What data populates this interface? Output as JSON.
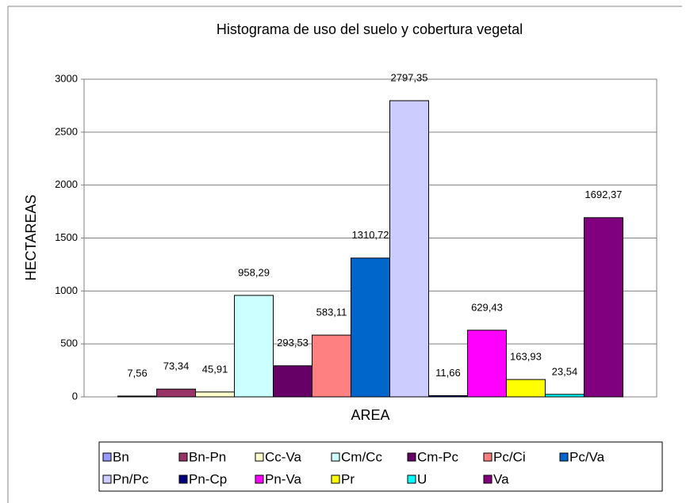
{
  "chart_data": {
    "type": "bar",
    "title": "Histograma de uso del suelo y cobertura vegetal",
    "ylabel": "HECTAREAS",
    "categories": [
      "AREA"
    ],
    "ylim": [
      0,
      3000
    ],
    "yticks": [
      0,
      500,
      1000,
      1500,
      2000,
      2500,
      3000
    ],
    "grid": true,
    "legend": "bottom",
    "series": [
      {
        "name": "Bn",
        "color": "#9999FF",
        "values": [
          7.56
        ],
        "value_labels": [
          "7,56"
        ]
      },
      {
        "name": "Bn-Pn",
        "color": "#993366",
        "values": [
          73.34
        ],
        "value_labels": [
          "73,34"
        ]
      },
      {
        "name": "Cc-Va",
        "color": "#FFFFCC",
        "values": [
          45.91
        ],
        "value_labels": [
          "45,91"
        ]
      },
      {
        "name": "Cm/Cc",
        "color": "#CCFFFF",
        "values": [
          958.29
        ],
        "value_labels": [
          "958,29"
        ]
      },
      {
        "name": "Cm-Pc",
        "color": "#660066",
        "values": [
          293.53
        ],
        "value_labels": [
          "293,53"
        ]
      },
      {
        "name": "Pc/Ci",
        "color": "#FF8080",
        "values": [
          583.11
        ],
        "value_labels": [
          "583,11"
        ]
      },
      {
        "name": "Pc/Va",
        "color": "#0066CC",
        "values": [
          1310.72
        ],
        "value_labels": [
          "1310,72"
        ]
      },
      {
        "name": "Pn/Pc",
        "color": "#CCCCFF",
        "values": [
          2797.35
        ],
        "value_labels": [
          "2797,35"
        ]
      },
      {
        "name": "Pn-Cp",
        "color": "#000080",
        "values": [
          11.66
        ],
        "value_labels": [
          "11,66"
        ]
      },
      {
        "name": "Pn-Va",
        "color": "#FF00FF",
        "values": [
          629.43
        ],
        "value_labels": [
          "629,43"
        ]
      },
      {
        "name": "Pr",
        "color": "#FFFF00",
        "values": [
          163.93
        ],
        "value_labels": [
          "163,93"
        ]
      },
      {
        "name": "U",
        "color": "#00FFFF",
        "values": [
          23.54
        ],
        "value_labels": [
          "23,54"
        ]
      },
      {
        "name": "Va",
        "color": "#800080",
        "values": [
          1692.37
        ],
        "value_labels": [
          "1692,37"
        ]
      }
    ]
  }
}
